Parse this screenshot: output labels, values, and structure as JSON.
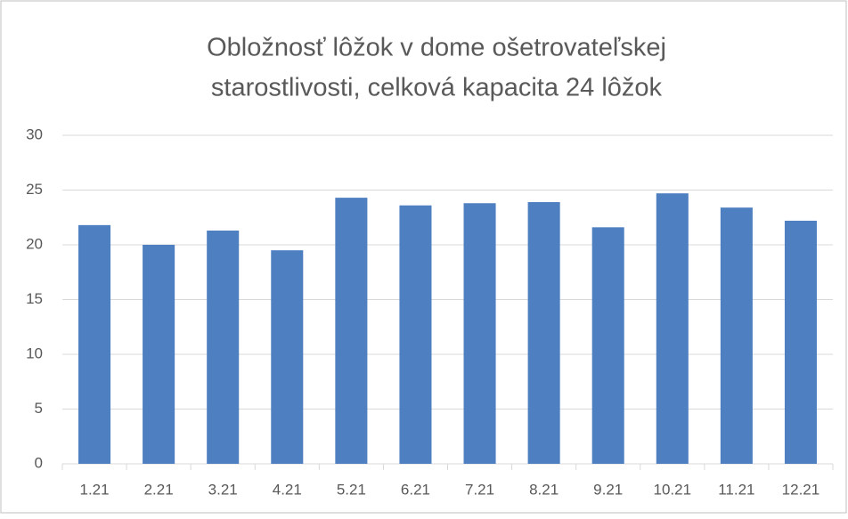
{
  "chart_data": {
    "type": "bar",
    "title": [
      "Obložnosť lôžok v dome ošetrovateľskej",
      "starostlivosti, celková kapacita 24 lôžok"
    ],
    "categories": [
      "1.21",
      "2.21",
      "3.21",
      "4.21",
      "5.21",
      "6.21",
      "7.21",
      "8.21",
      "9.21",
      "10.21",
      "11.21",
      "12.21"
    ],
    "values": [
      21.8,
      20.0,
      21.3,
      19.5,
      24.3,
      23.6,
      23.8,
      23.9,
      21.6,
      24.7,
      23.4,
      22.2
    ],
    "color": "#4e7fc0",
    "ylim": [
      0,
      30
    ],
    "yticks": [
      0,
      5,
      10,
      15,
      20,
      25,
      30
    ],
    "grid": true
  }
}
